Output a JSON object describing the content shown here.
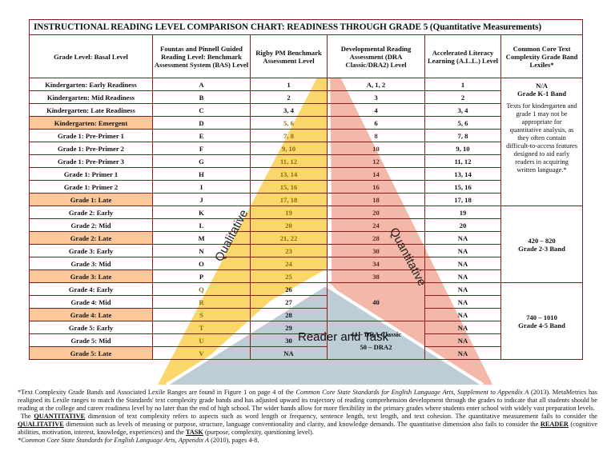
{
  "title": "INSTRUCTIONAL READING LEVEL COMPARISON CHART: READINESS THROUGH GRADE 5  (Quantitative Measurements)",
  "headers": {
    "grade": "Grade Level: Basal Level",
    "fp": "Fountas and Pinnell Guided Reading Level: Benchmark Assessment System (BAS) Level",
    "rigby": "Rigby PM Benchmark Assessment Level",
    "dra": "Developmental Reading Assessment (DRA Classic/DRA2) Level",
    "all": "Accelerated Literacy Learning (A.L.L.) Level",
    "ccss": "Common Core Text Complexity Grade Band Lexiles*"
  },
  "rows": [
    {
      "grade": "Kindergarten: Early Readiness",
      "fp": "A",
      "rigby": "1",
      "dra": "A, 1, 2",
      "all": "1",
      "highlight": false
    },
    {
      "grade": "Kindergarten: Mid Readiness",
      "fp": "B",
      "rigby": "2",
      "dra": "3",
      "all": "2",
      "highlight": false
    },
    {
      "grade": "Kindergarten: Late Readiness",
      "fp": "C",
      "rigby": "3, 4",
      "dra": "4",
      "all": "3, 4",
      "highlight": false
    },
    {
      "grade": "Kindergarten: Emergent",
      "fp": "D",
      "rigby": "5, 6",
      "dra": "6",
      "all": "5, 6",
      "highlight": true
    },
    {
      "grade": "Grade 1: Pre-Primer 1",
      "fp": "E",
      "rigby": "7, 8",
      "dra": "8",
      "all": "7, 8",
      "highlight": false
    },
    {
      "grade": "Grade 1: Pre-Primer 2",
      "fp": "F",
      "rigby": "9, 10",
      "dra": "10",
      "all": "9, 10",
      "highlight": false
    },
    {
      "grade": "Grade 1: Pre-Primer 3",
      "fp": "G",
      "rigby": "11, 12",
      "dra": "12",
      "all": "11, 12",
      "highlight": false
    },
    {
      "grade": "Grade 1: Primer 1",
      "fp": "H",
      "rigby": "13, 14",
      "dra": "14",
      "all": "13, 14",
      "highlight": false
    },
    {
      "grade": "Grade 1: Primer 2",
      "fp": "I",
      "rigby": "15, 16",
      "dra": "16",
      "all": "15, 16",
      "highlight": false
    },
    {
      "grade": "Grade 1: Late",
      "fp": "J",
      "rigby": "17, 18",
      "dra": "18",
      "all": "17, 18",
      "highlight": true
    },
    {
      "grade": "Grade 2: Early",
      "fp": "K",
      "rigby": "19",
      "dra": "20",
      "all": "19",
      "highlight": false
    },
    {
      "grade": "Grade 2: Mid",
      "fp": "L",
      "rigby": "20",
      "dra": "24",
      "all": "20",
      "highlight": false
    },
    {
      "grade": "Grade 2: Late",
      "fp": "M",
      "rigby": "21, 22",
      "dra": "28",
      "all": "NA",
      "highlight": true
    },
    {
      "grade": "Grade 3: Early",
      "fp": "N",
      "rigby": "23",
      "dra": "30",
      "all": "NA",
      "highlight": false
    },
    {
      "grade": "Grade 3: Mid",
      "fp": "O",
      "rigby": "24",
      "dra": "34",
      "all": "NA",
      "highlight": false
    },
    {
      "grade": "Grade 3: Late",
      "fp": "P",
      "rigby": "25",
      "dra": "38",
      "all": "NA",
      "highlight": true
    },
    {
      "grade": "Grade 4: Early",
      "fp": "Q",
      "rigby": "26",
      "dra": "",
      "all": "NA",
      "highlight": false
    },
    {
      "grade": "Grade 4: Mid",
      "fp": "R",
      "rigby": "27",
      "dra": "",
      "all": "NA",
      "highlight": false
    },
    {
      "grade": "Grade 4: Late",
      "fp": "S",
      "rigby": "28",
      "dra": "",
      "all": "NA",
      "highlight": true
    },
    {
      "grade": "Grade 5: Early",
      "fp": "T",
      "rigby": "29",
      "dra": "",
      "all": "NA",
      "highlight": false
    },
    {
      "grade": "Grade 5: Mid",
      "fp": "U",
      "rigby": "30",
      "dra": "",
      "all": "NA",
      "highlight": false
    },
    {
      "grade": "Grade 5: Late",
      "fp": "V",
      "rigby": "NA",
      "dra": "",
      "all": "NA",
      "highlight": true
    }
  ],
  "dra_merged": {
    "grade4": "40",
    "grade5_line1": "44 – DRA Classic",
    "grade5_line2": "50 – DRA2"
  },
  "lexile_bands": {
    "k1_title": "N/A",
    "k1_band": "Grade K-1 Band",
    "k1_note": "Texts for kindergarten and grade 1 may not be appropriate for quantitative analysis, as they often contain difficult-to-access features designed to aid early readers in acquiring written language.*",
    "g23_range": "420 – 820",
    "g23_band": "Grade 2-3 Band",
    "g45_range": "740 – 1010",
    "g45_band": "Grade 4-5 Band"
  },
  "overlay_labels": {
    "qualitative": "Qualitative",
    "quantitative": "Quantitative",
    "reader_task": "Reader and Task"
  },
  "colors": {
    "border": "#8b1a1a",
    "highlight_row": "#fdc79a",
    "qualitative": "#fbd66b",
    "quantitative": "#f4b8aa",
    "reader_task": "#bccdd5"
  },
  "notes": {
    "p1_a": "*Text Complexity Grade Bands and Associated Lexile Ranges are found in Figure 1 on page 4 of the ",
    "p1_em": "Common Core State Standards for English Language Arts, Supplement to Appendix A",
    "p1_b": " (2013). MetaMetrics has realigned its Lexile ranges to match the Standards' text complexity grade bands and has adjusted upward its trajectory of reading comprehension development through the grades to indicate that all students should be reading at the college and career readiness level by no later than the end of high school. The wider bands allow for more flexibility in the primary grades where students enter school with widely vast preparation levels.",
    "p2_a": "The ",
    "p2_q1": "QUANTITATIVE",
    "p2_b": " dimension of text complexity refers to aspects such as word length or frequency, sentence length, text length, and text cohesion. The quantitative measurement fails to consider the ",
    "p2_q2": "QUALITATIVE",
    "p2_c": " dimension such as levels of meaning or purpose, structure, language conventionality and clarity, and knowledge demands. The quantitative dimension also fails to consider the ",
    "p2_q3": "READER",
    "p2_d": " (cognitive abilities, motivation, interest, knowledge, experiences) and the ",
    "p2_q4": "TASK",
    "p2_e": " (purpose, complexity, questioning level).",
    "p3_em": "*Common Core State Standards for English Language Arts, Appendix A",
    "p3_b": " (2010), pages 4-8."
  }
}
